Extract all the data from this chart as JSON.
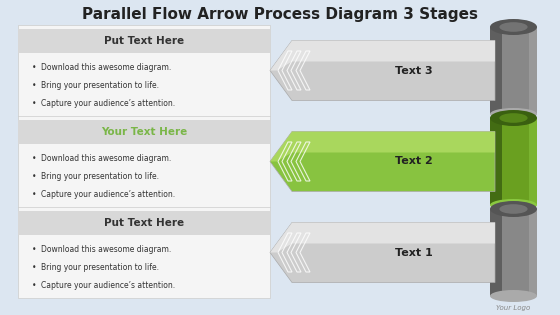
{
  "title": "Parallel Flow Arrow Process Diagram 3 Stages",
  "title_fontsize": 11,
  "background_color": "#dce6f1",
  "left_bg": "#f2f2f2",
  "stages": [
    {
      "row": 0,
      "header": "Put Text Here",
      "header_color": "#333333",
      "bullets": [
        "Download this awesome diagram.",
        "Bring your presentation to life.",
        "Capture your audience’s attention."
      ],
      "arrow_label": "Text 3",
      "arrow_body_color": "#cccccc",
      "arrow_body_highlight": "#eeeeee",
      "arrow_body_shadow": "#999999",
      "cylinder_color_top": "#555555",
      "cylinder_color_mid": "#888888",
      "cylinder_color_bot": "#aaaaaa",
      "label_color": "#222222"
    },
    {
      "row": 1,
      "header": "Your Text Here",
      "header_color": "#7ab648",
      "bullets": [
        "Download this awesome diagram.",
        "Bring your presentation to life.",
        "Capture your audience’s attention."
      ],
      "arrow_label": "Text 2",
      "arrow_body_color": "#88c340",
      "arrow_body_highlight": "#b8e06a",
      "arrow_body_shadow": "#5a8a20",
      "cylinder_color_top": "#3a6010",
      "cylinder_color_mid": "#6aa020",
      "cylinder_color_bot": "#8ac840",
      "label_color": "#222222"
    },
    {
      "row": 2,
      "header": "Put Text Here",
      "header_color": "#333333",
      "bullets": [
        "Download this awesome diagram.",
        "Bring your presentation to life.",
        "Capture your audience’s attention."
      ],
      "arrow_label": "Text 1",
      "arrow_body_color": "#cccccc",
      "arrow_body_highlight": "#eeeeee",
      "arrow_body_shadow": "#999999",
      "cylinder_color_top": "#555555",
      "cylinder_color_mid": "#888888",
      "cylinder_color_bot": "#aaaaaa",
      "label_color": "#222222"
    }
  ],
  "footer_text": "Your Logo",
  "footer_color": "#888888"
}
